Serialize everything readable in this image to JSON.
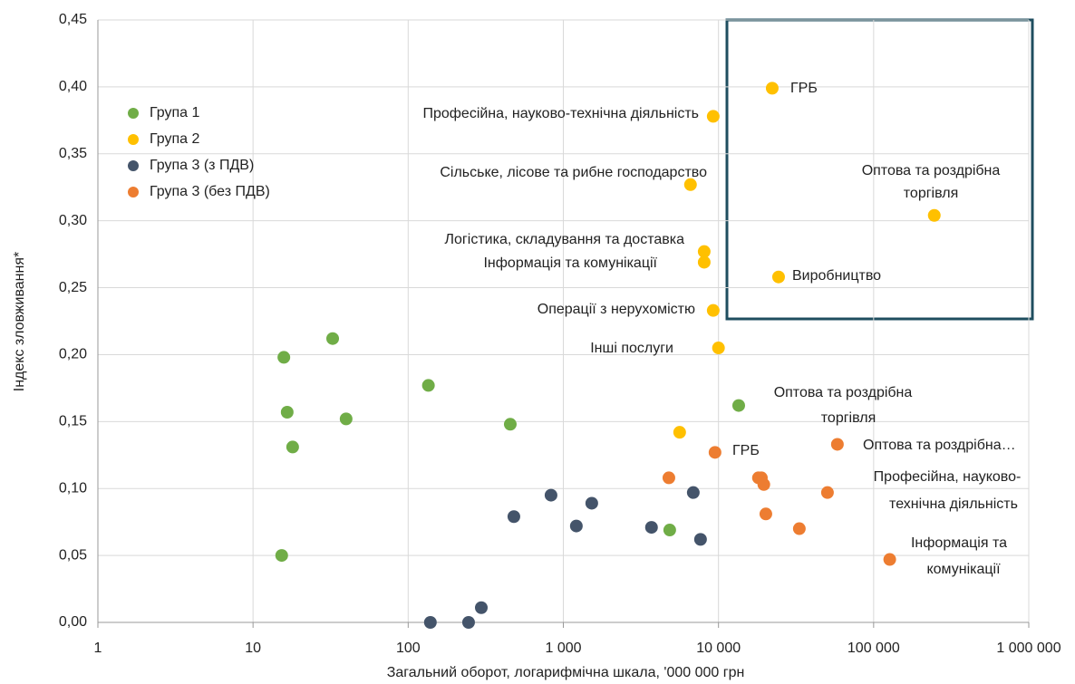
{
  "chart_data": {
    "type": "scatter",
    "xlabel": "Загальний оборот, логарифмічна шкала, '000 000 грн",
    "ylabel": "Індекс зловживання*",
    "xscale": "log",
    "grid": true,
    "legend": "upper left",
    "xlim": [
      1,
      1000000
    ],
    "xticks": [
      1,
      10,
      100,
      {
        "value": 1000,
        "label": "1 000"
      },
      {
        "value": 10000,
        "label": "10 000"
      },
      {
        "value": 100000,
        "label": "100 000"
      },
      {
        "value": 1000000,
        "label": "1 000 000"
      }
    ],
    "ylim": [
      0,
      0.45
    ],
    "yticks": [
      {
        "value": 0,
        "label": "0,00"
      },
      {
        "value": 0.05,
        "label": "0,05"
      },
      {
        "value": 0.1,
        "label": "0,10"
      },
      {
        "value": 0.15,
        "label": "0,15"
      },
      {
        "value": 0.2,
        "label": "0,20"
      },
      {
        "value": 0.25,
        "label": "0,25"
      },
      {
        "value": 0.3,
        "label": "0,30"
      },
      {
        "value": 0.35,
        "label": "0,35"
      },
      {
        "value": 0.4,
        "label": "0,40"
      },
      {
        "value": 0.45,
        "label": "0,45"
      }
    ],
    "series": [
      {
        "name": "Група 1",
        "color": "#70ad47",
        "x": [
          15.3,
          15.8,
          16.6,
          18,
          32.6,
          39.8,
          135,
          455,
          4850,
          13500
        ],
        "values": [
          0.05,
          0.198,
          0.157,
          0.131,
          0.212,
          0.152,
          0.177,
          0.148,
          0.069,
          0.162
        ]
      },
      {
        "name": "Група 2",
        "color": "#ffc000",
        "x": [
          22200,
          9250,
          6600,
          246000,
          8090,
          8090,
          24400,
          9250,
          10000,
          5620
        ],
        "values": [
          0.399,
          0.378,
          0.327,
          0.304,
          0.277,
          0.269,
          0.258,
          0.233,
          0.205,
          0.142
        ]
      },
      {
        "name": "Група 3 (з ПДВ)",
        "color": "#44546a",
        "x": [
          139,
          245,
          296,
          480,
          833,
          1213,
          1525,
          3700,
          6880,
          7660
        ],
        "values": [
          0,
          0,
          0.011,
          0.079,
          0.095,
          0.072,
          0.089,
          0.071,
          0.097,
          0.062
        ]
      },
      {
        "name": "Група 3 (без ПДВ)",
        "color": "#ed7d31",
        "x": [
          4790,
          9500,
          18100,
          18900,
          19600,
          20200,
          33200,
          50400,
          58400,
          127000
        ],
        "values": [
          0.108,
          0.127,
          0.108,
          0.108,
          0.103,
          0.081,
          0.07,
          0.097,
          0.133,
          0.047
        ]
      }
    ],
    "annotations": [
      "ГРБ",
      "Професійна, науково-технічна діяльність",
      "Сільське, лісове та рибне господарство",
      "Оптова та роздрібна",
      "торгівля",
      "Логістика, складування та доставка",
      "Інформація та комунікації",
      "Виробництво",
      "Операції з нерухомістю",
      "Інші послуги",
      "Оптова та роздрібна",
      "торгівля",
      "ГРБ",
      "Оптова та роздрібна…",
      "Професійна, науково-",
      "технічна діяльність",
      "Інформація та",
      "комунікації"
    ]
  }
}
